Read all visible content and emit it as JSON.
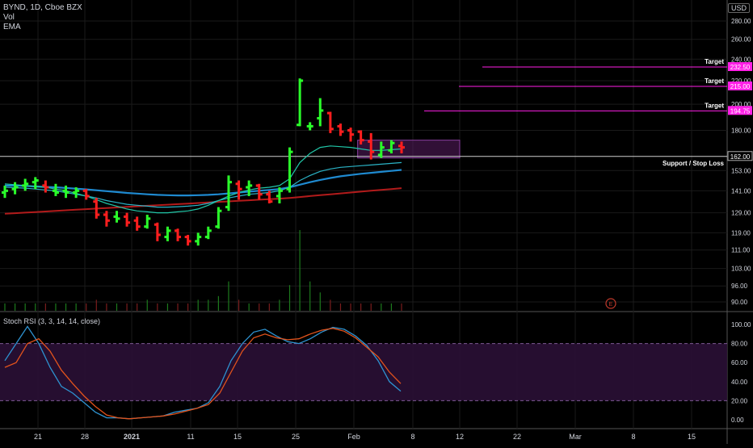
{
  "header": {
    "symbol_line": "BYND, 1D, Cboe BZX",
    "volume_label": "Vol",
    "ema_label": "EMA",
    "currency_badge": "USD"
  },
  "chart_data": [
    {
      "type": "candlestick",
      "title": "BYND, 1D, Cboe BZX",
      "y_axis_label": "USD",
      "y_scale": "log",
      "y_ticks": [
        90.0,
        96.0,
        103.0,
        111.0,
        119.0,
        129.0,
        141.0,
        153.0,
        162.0,
        180.0,
        200.0,
        220.0,
        240.0,
        260.0,
        280.0
      ],
      "x_ticks": [
        "21",
        "28",
        "2021",
        "11",
        "15",
        "25",
        "Feb",
        "8",
        "12",
        "22",
        "Mar",
        "8",
        "15"
      ],
      "candles": [
        {
          "open": 140,
          "high": 144,
          "low": 137,
          "close": 141,
          "color": "up"
        },
        {
          "open": 142,
          "high": 146,
          "low": 139,
          "close": 143,
          "color": "up"
        },
        {
          "open": 144,
          "high": 148,
          "low": 141,
          "close": 145,
          "color": "up"
        },
        {
          "open": 146,
          "high": 149,
          "low": 142,
          "close": 147,
          "color": "up"
        },
        {
          "open": 144,
          "high": 147,
          "low": 140,
          "close": 143,
          "color": "down"
        },
        {
          "open": 141,
          "high": 145,
          "low": 138,
          "close": 140,
          "color": "up"
        },
        {
          "open": 141,
          "high": 144,
          "low": 137,
          "close": 140,
          "color": "up"
        },
        {
          "open": 140,
          "high": 143,
          "low": 137,
          "close": 141,
          "color": "up"
        },
        {
          "open": 141,
          "high": 142,
          "low": 136,
          "close": 138,
          "color": "down"
        },
        {
          "open": 135,
          "high": 137,
          "low": 126,
          "close": 128,
          "color": "down"
        },
        {
          "open": 128,
          "high": 130,
          "low": 122,
          "close": 125,
          "color": "down"
        },
        {
          "open": 127,
          "high": 130,
          "low": 124,
          "close": 126,
          "color": "up"
        },
        {
          "open": 127,
          "high": 129,
          "low": 122,
          "close": 124,
          "color": "down"
        },
        {
          "open": 125,
          "high": 127,
          "low": 120,
          "close": 122,
          "color": "down"
        },
        {
          "open": 122,
          "high": 128,
          "low": 121,
          "close": 126,
          "color": "up"
        },
        {
          "open": 123,
          "high": 124,
          "low": 115,
          "close": 118,
          "color": "down"
        },
        {
          "open": 117,
          "high": 122,
          "low": 115,
          "close": 120,
          "color": "up"
        },
        {
          "open": 120,
          "high": 121,
          "low": 115,
          "close": 117,
          "color": "down"
        },
        {
          "open": 117,
          "high": 118,
          "low": 113,
          "close": 115,
          "color": "down"
        },
        {
          "open": 115,
          "high": 119,
          "low": 113,
          "close": 117,
          "color": "up"
        },
        {
          "open": 117,
          "high": 122,
          "low": 116,
          "close": 120,
          "color": "up"
        },
        {
          "open": 122,
          "high": 132,
          "low": 121,
          "close": 130,
          "color": "up"
        },
        {
          "open": 132,
          "high": 150,
          "low": 130,
          "close": 146,
          "color": "up"
        },
        {
          "open": 145,
          "high": 147,
          "low": 136,
          "close": 142,
          "color": "down"
        },
        {
          "open": 143,
          "high": 147,
          "low": 138,
          "close": 144,
          "color": "up"
        },
        {
          "open": 144,
          "high": 145,
          "low": 136,
          "close": 139,
          "color": "down"
        },
        {
          "open": 139,
          "high": 141,
          "low": 134,
          "close": 135,
          "color": "down"
        },
        {
          "open": 138,
          "high": 143,
          "low": 134,
          "close": 141,
          "color": "up"
        },
        {
          "open": 142,
          "high": 168,
          "low": 140,
          "close": 165,
          "color": "up"
        },
        {
          "open": 184,
          "high": 222,
          "low": 183,
          "close": 220,
          "color": "up"
        },
        {
          "open": 183,
          "high": 186,
          "low": 180,
          "close": 183,
          "color": "up"
        },
        {
          "open": 189,
          "high": 205,
          "low": 183,
          "close": 195,
          "color": "up"
        },
        {
          "open": 193,
          "high": 194,
          "low": 178,
          "close": 181,
          "color": "down"
        },
        {
          "open": 183,
          "high": 185,
          "low": 176,
          "close": 179,
          "color": "down"
        },
        {
          "open": 180,
          "high": 182,
          "low": 172,
          "close": 177,
          "color": "down"
        },
        {
          "open": 179,
          "high": 180,
          "low": 170,
          "close": 173,
          "color": "down"
        },
        {
          "open": 172,
          "high": 178,
          "low": 160,
          "close": 165,
          "color": "down"
        },
        {
          "open": 163,
          "high": 172,
          "low": 161,
          "close": 168,
          "color": "up"
        },
        {
          "open": 166,
          "high": 173,
          "low": 164,
          "close": 171,
          "color": "up"
        },
        {
          "open": 169,
          "high": 172,
          "low": 164,
          "close": 168,
          "color": "down"
        }
      ],
      "volume": [
        2,
        2,
        2,
        2,
        2,
        2,
        2,
        2,
        2,
        3,
        2,
        2,
        2,
        2,
        3,
        2,
        2,
        2,
        2,
        3,
        3,
        4,
        8,
        3,
        2,
        2,
        2,
        3,
        7,
        22,
        8,
        5,
        3,
        2,
        2,
        2,
        2,
        2,
        2,
        2
      ],
      "ema_fast": [
        145,
        144.5,
        144,
        143.5,
        143,
        142,
        141,
        139.5,
        138,
        136,
        134,
        132.5,
        131,
        130,
        129.5,
        129,
        129,
        129.5,
        130,
        131,
        133,
        135.5,
        138,
        140,
        141.5,
        142.5,
        143,
        144,
        148,
        158,
        164,
        168,
        169,
        168.5,
        168,
        167,
        166,
        166,
        166.5,
        167
      ],
      "ema_mid": [
        143,
        142.8,
        142.5,
        142,
        141.5,
        141,
        140,
        139,
        138,
        137,
        135.5,
        134.5,
        133.5,
        133,
        132.5,
        132,
        132,
        132.2,
        132.5,
        133,
        134,
        135.5,
        137,
        138,
        139,
        139.5,
        140,
        141,
        143,
        147,
        150,
        152.5,
        154,
        155,
        155.5,
        156,
        156.5,
        157,
        157.5,
        158
      ],
      "ema_slow": [
        144,
        144,
        143.8,
        143.5,
        143.2,
        143,
        142.6,
        142.2,
        141.8,
        141.3,
        140.8,
        140.3,
        139.8,
        139.4,
        139,
        138.7,
        138.5,
        138.4,
        138.4,
        138.5,
        138.7,
        139,
        139.5,
        140,
        140.5,
        141,
        141.5,
        142,
        143,
        144.5,
        146,
        147.3,
        148.5,
        149.5,
        150.3,
        151,
        151.6,
        152.2,
        152.8,
        153.4
      ],
      "ema_long": [
        128.5,
        128.8,
        129.1,
        129.4,
        129.7,
        130,
        130.3,
        130.6,
        130.9,
        131.2,
        131.5,
        131.8,
        132.1,
        132.4,
        132.7,
        133,
        133.3,
        133.6,
        133.9,
        134.2,
        134.5,
        134.8,
        135.1,
        135.4,
        135.7,
        136,
        136.3,
        136.6,
        137,
        137.5,
        138,
        138.5,
        139,
        139.5,
        140,
        140.5,
        141,
        141.5,
        142,
        142.5
      ],
      "horizontal_lines": [
        {
          "label": "Support / Stop Loss",
          "price": 162.0,
          "badge": "162.00"
        },
        {
          "label": "Target",
          "price": 194.75,
          "badge": "194.75"
        },
        {
          "label": "Target",
          "price": 215.0,
          "badge": "215.00"
        },
        {
          "label": "Target",
          "price": 232.5,
          "badge": "232.50"
        }
      ],
      "zone": {
        "top": 173,
        "bottom": 161
      },
      "event_marker": "E",
      "colors": {
        "up": "#2aff2a",
        "down": "#ff1e1e",
        "ema_fast": "#21c7a8",
        "ema_mid": "#2bb4c7",
        "ema_slow": "#1f8ad0",
        "ema_long": "#b21b1b",
        "target": "#ff1ee6",
        "zone": "#5a1d62",
        "support": "#d0d0d0",
        "volume_up": "#1d7a1d",
        "volume_down": "#7a1d1d"
      }
    },
    {
      "type": "line",
      "title": "Stoch RSI (3, 3, 14, 14, close)",
      "y_ticks": [
        0.0,
        20.0,
        40.0,
        60.0,
        80.0,
        100.0
      ],
      "band": [
        20,
        80
      ],
      "series": [
        {
          "color": "#2e93d1",
          "values": [
            62,
            80,
            98,
            80,
            55,
            35,
            28,
            18,
            8,
            2,
            2,
            1,
            2,
            3,
            4,
            8,
            10,
            12,
            18,
            35,
            62,
            80,
            92,
            95,
            88,
            82,
            80,
            85,
            92,
            97,
            95,
            88,
            78,
            62,
            40,
            30
          ]
        },
        {
          "color": "#e2531c",
          "values": [
            55,
            60,
            80,
            85,
            72,
            52,
            38,
            25,
            14,
            5,
            2,
            1,
            2,
            3,
            4,
            6,
            9,
            12,
            16,
            28,
            50,
            72,
            86,
            90,
            86,
            84,
            85,
            90,
            94,
            96,
            93,
            86,
            76,
            66,
            50,
            38
          ]
        }
      ]
    }
  ]
}
